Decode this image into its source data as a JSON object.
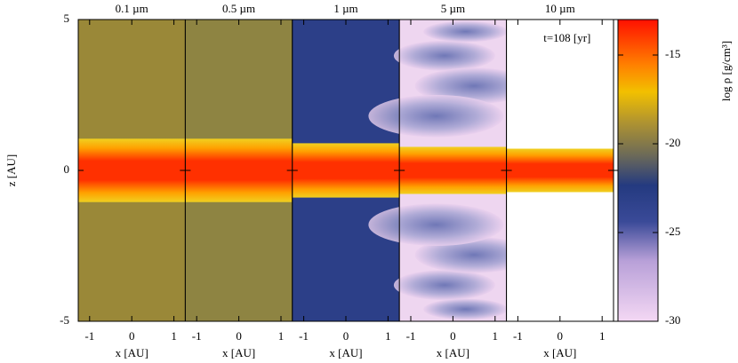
{
  "chart_data": [
    {
      "type": "heatmap",
      "title": "0.1 µm",
      "xlabel": "x [AU]",
      "xlim": [
        -1.27,
        1.27
      ],
      "xticks": [
        -1,
        0,
        1
      ],
      "ylabel": "z [AU]",
      "ylim": [
        -5,
        5
      ],
      "yticks": [
        -5,
        0,
        5
      ]
    },
    {
      "type": "heatmap",
      "title": "0.5 µm",
      "xlabel": "x [AU]",
      "xlim": [
        -1.27,
        1.27
      ],
      "xticks": [
        -1,
        0,
        1
      ]
    },
    {
      "type": "heatmap",
      "title": "1 µm",
      "xlabel": "x [AU]",
      "xlim": [
        -1.27,
        1.27
      ],
      "xticks": [
        -1,
        0,
        1
      ]
    },
    {
      "type": "heatmap",
      "title": "5 µm",
      "xlabel": "x [AU]",
      "xlim": [
        -1.27,
        1.27
      ],
      "xticks": [
        -1,
        0,
        1
      ]
    },
    {
      "type": "heatmap",
      "title": "10 µm",
      "xlabel": "x [AU]",
      "xlim": [
        -1.27,
        1.27
      ],
      "xticks": [
        -1,
        0,
        1
      ],
      "annotation": "t=108 [yr]"
    },
    {
      "type": "colorbar",
      "label": "log ρ [g/cm³]",
      "ylim": [
        -30,
        -13
      ],
      "yticks": [
        -30,
        -25,
        -20,
        -15
      ]
    }
  ]
}
